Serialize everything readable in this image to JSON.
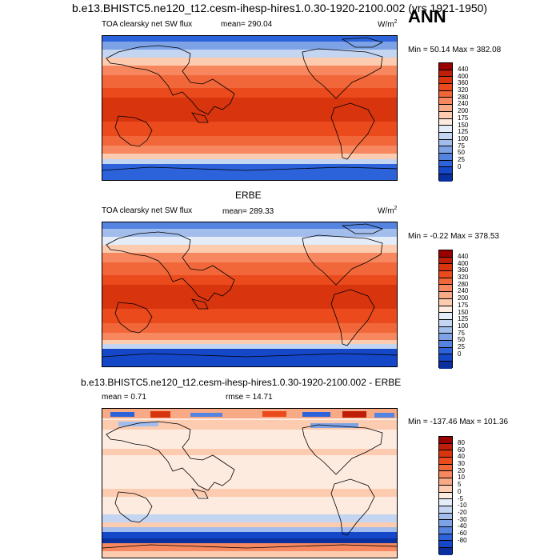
{
  "header": {
    "title": "b.e13.BHISTC5.ne120_t12.cesm-ihesp-hires1.0.30-1920-2100.002 (yrs 1921-1950)",
    "season": "ANN"
  },
  "panels": [
    {
      "id": "model",
      "title": "",
      "left_label": "TOA clearsky net SW flux",
      "center_label": "mean= 290.04",
      "unit": "W/m",
      "unit_sup": "2",
      "minmax": "Min =  50.14 Max = 382.08"
    },
    {
      "id": "obs",
      "title": "ERBE",
      "left_label": "TOA clearsky net SW flux",
      "center_label": "mean= 289.33",
      "unit": "W/m",
      "unit_sup": "2",
      "minmax": "Min =  -0.22 Max = 378.53"
    },
    {
      "id": "diff",
      "title": "b.e13.BHISTC5.ne120_t12.cesm-ihesp-hires1.0.30-1920-2100.002 - ERBE",
      "left_label": "mean =   0.71",
      "center_label": "rmse =  14.71",
      "unit": "",
      "unit_sup": "",
      "minmax": "Min = -137.46 Max = 101.36"
    }
  ],
  "colorbars": {
    "flux": {
      "labels": [
        "440",
        "400",
        "360",
        "320",
        "280",
        "240",
        "200",
        "175",
        "150",
        "125",
        "100",
        "75",
        "50",
        "25",
        "0"
      ],
      "colors": [
        "#990000",
        "#bf1f08",
        "#d8340e",
        "#ea4a1c",
        "#f2673a",
        "#f6875e",
        "#f8a985",
        "#fccbb0",
        "#fdebe0",
        "#e3ecf8",
        "#c4d5f2",
        "#a2bdec",
        "#7da3e6",
        "#5484e0",
        "#2d63da",
        "#1547c9",
        "#0a2f9e"
      ]
    },
    "diff": {
      "labels": [
        "80",
        "60",
        "40",
        "30",
        "20",
        "10",
        "5",
        "0",
        "-5",
        "-10",
        "-20",
        "-30",
        "-40",
        "-60",
        "-80"
      ],
      "colors": [
        "#990000",
        "#bf1f08",
        "#d8340e",
        "#ea4a1c",
        "#f2673a",
        "#f6875e",
        "#f8a985",
        "#fccbb0",
        "#fdebe0",
        "#e3ecf8",
        "#c4d5f2",
        "#a2bdec",
        "#7da3e6",
        "#5484e0",
        "#2d63da",
        "#1547c9",
        "#0a2f9e"
      ]
    }
  }
}
